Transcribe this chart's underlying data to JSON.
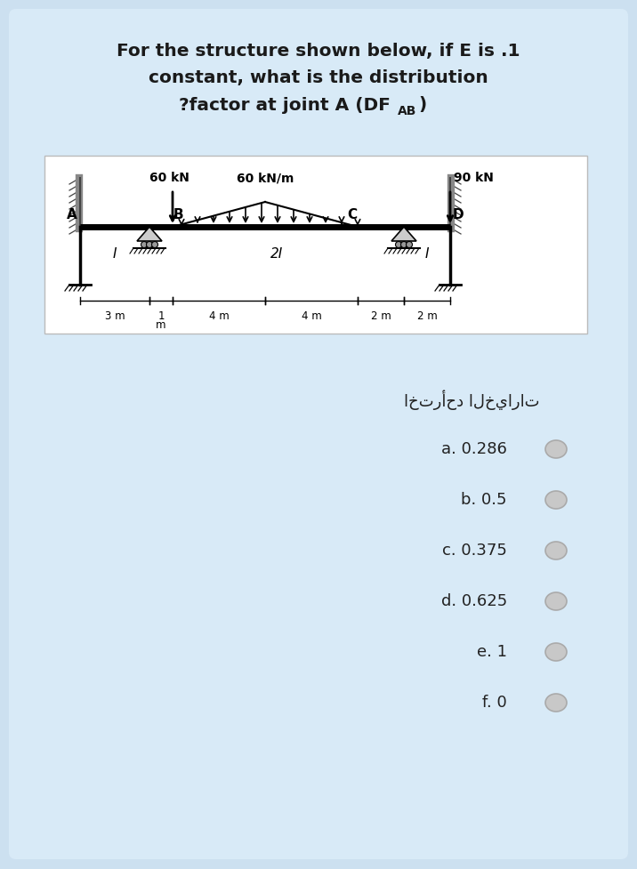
{
  "bg_color": "#cce0f0",
  "title_line1": "For the structure shown below, if E is .1",
  "title_line2": "constant, what is the distribution",
  "title_line3": "?factor at joint A (DF",
  "title_sub": "AB",
  "title_line3_end": ")",
  "arabic_text": "اخترأحد الخيارات",
  "options": [
    "a. 0.286",
    "b. 0.5",
    "c. 0.375",
    "d. 0.625",
    "e. 1",
    "f. 0"
  ],
  "load_60kN_label": "60 kN",
  "load_60kNm_label": "60 kN/m",
  "load_90kN_label": "90 kN",
  "dim_3m": "3 m",
  "dim_1m": "1",
  "dim_m": "m",
  "dim_4m_1": "4 m",
  "dim_4m_2": "4 m",
  "dim_2m_1": "2 m",
  "dim_2m_2": "2 m",
  "label_A": "A",
  "label_B": "B",
  "label_C": "C",
  "label_D": "D",
  "label_I_left": "I",
  "label_2I": "2I",
  "label_I_right": "I"
}
